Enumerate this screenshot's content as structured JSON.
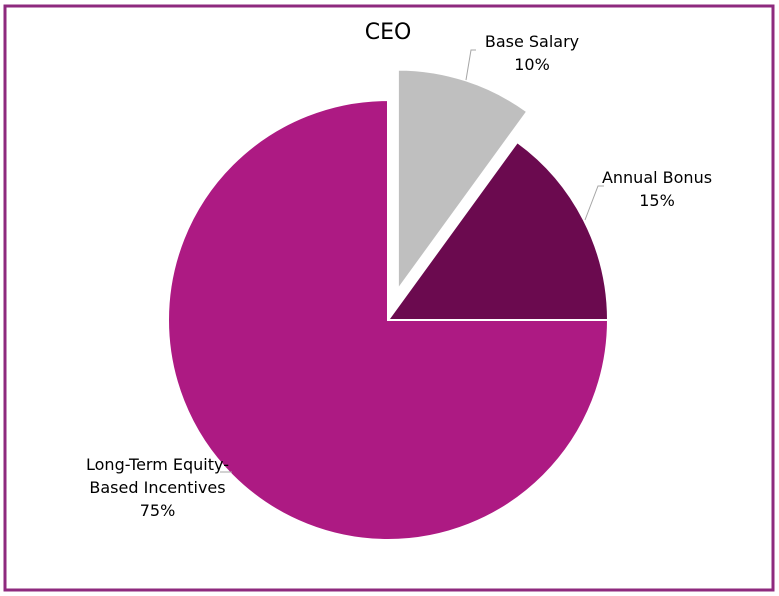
{
  "chart_data": {
    "type": "pie",
    "title": "CEO",
    "categories": [
      "Base Salary",
      "Annual Bonus",
      "Long-Term Equity-Based Incentives"
    ],
    "values": [
      10,
      15,
      75
    ],
    "value_labels": [
      "10%",
      "15%",
      "75%"
    ],
    "colors": [
      "#bfbfbf",
      "#6b0a4f",
      "#ad1a83"
    ]
  }
}
